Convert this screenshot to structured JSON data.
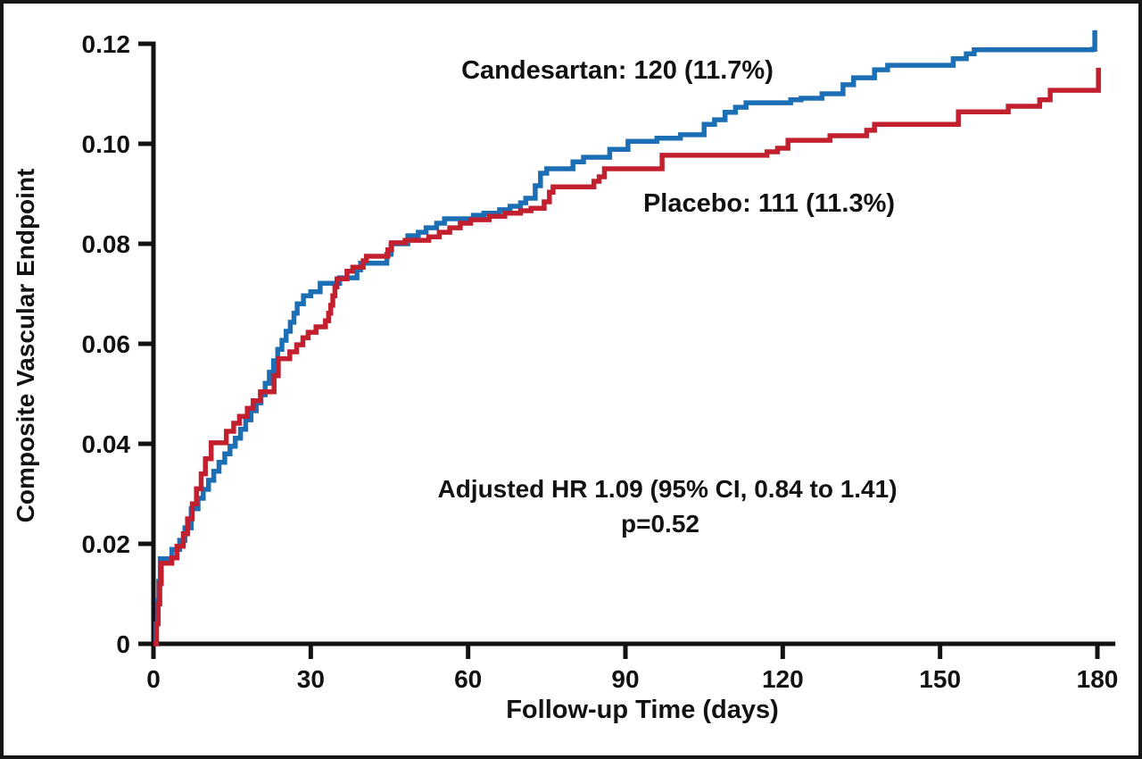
{
  "figure": {
    "colors": {
      "candesartan": "#1C6FB5",
      "placebo": "#C2202F",
      "axis": "#121212"
    },
    "annotations": {
      "candesartan_label": "Candesartan: 120 (11.7%)",
      "placebo_label": "Placebo: 111 (11.3%)",
      "hr_line1": "Adjusted HR 1.09 (95% CI, 0.84 to 1.41)",
      "hr_line2": "p=0.52"
    }
  },
  "chart_data": {
    "type": "line",
    "subtype": "kaplan-meier-cumulative-incidence-step",
    "title": "",
    "xlabel": "Follow-up Time (days)",
    "ylabel": "Composite Vascular Endpoint",
    "xlim": [
      0,
      183
    ],
    "ylim": [
      0,
      0.12
    ],
    "x_ticks": [
      0,
      30,
      60,
      90,
      120,
      150,
      180
    ],
    "y_ticks": [
      0,
      0.02,
      0.04,
      0.06,
      0.08,
      0.1,
      0.12
    ],
    "grid": false,
    "legend_position": "inline-labels",
    "annotation_text": [
      "Adjusted HR 1.09 (95% CI, 0.84 to 1.41)",
      "p=0.52"
    ],
    "series": [
      {
        "name": "Candesartan",
        "events": 120,
        "percent": "11.7%",
        "color": "#1C6FB5",
        "points": [
          [
            0,
            0
          ],
          [
            0.5,
            0.004
          ],
          [
            0.8,
            0.0086
          ],
          [
            1.0,
            0.0125
          ],
          [
            1.3,
            0.017
          ],
          [
            3.5,
            0.0189
          ],
          [
            5,
            0.0207
          ],
          [
            6,
            0.0232
          ],
          [
            7.2,
            0.027
          ],
          [
            8.5,
            0.0291
          ],
          [
            9.5,
            0.0309
          ],
          [
            10.5,
            0.0327
          ],
          [
            11.5,
            0.0345
          ],
          [
            12.5,
            0.0363
          ],
          [
            13.6,
            0.038
          ],
          [
            14.6,
            0.0395
          ],
          [
            15.6,
            0.0411
          ],
          [
            16.6,
            0.0429
          ],
          [
            17.6,
            0.0448
          ],
          [
            18.6,
            0.0466
          ],
          [
            19.6,
            0.0482
          ],
          [
            20.5,
            0.0498
          ],
          [
            21.3,
            0.0521
          ],
          [
            22.1,
            0.0543
          ],
          [
            22.9,
            0.0566
          ],
          [
            23.7,
            0.0589
          ],
          [
            24.5,
            0.0607
          ],
          [
            25.3,
            0.0625
          ],
          [
            26.1,
            0.0643
          ],
          [
            26.8,
            0.0661
          ],
          [
            27.4,
            0.068
          ],
          [
            28.6,
            0.0696
          ],
          [
            30,
            0.0704
          ],
          [
            31.8,
            0.0721
          ],
          [
            35.5,
            0.0732
          ],
          [
            38.8,
            0.0748
          ],
          [
            39.5,
            0.0761
          ],
          [
            44.5,
            0.0779
          ],
          [
            45.3,
            0.08
          ],
          [
            48.5,
            0.0816
          ],
          [
            50.5,
            0.0823
          ],
          [
            52,
            0.0832
          ],
          [
            54,
            0.0841
          ],
          [
            55.5,
            0.085
          ],
          [
            61,
            0.0857
          ],
          [
            63,
            0.0861
          ],
          [
            66,
            0.0868
          ],
          [
            68,
            0.0875
          ],
          [
            70,
            0.0882
          ],
          [
            71,
            0.0891
          ],
          [
            72.8,
            0.0916
          ],
          [
            73.8,
            0.0941
          ],
          [
            75,
            0.095
          ],
          [
            80,
            0.0964
          ],
          [
            82,
            0.0973
          ],
          [
            87,
            0.0989
          ],
          [
            90.5,
            0.1005
          ],
          [
            96,
            0.1011
          ],
          [
            100.5,
            0.1018
          ],
          [
            105,
            0.1039
          ],
          [
            107,
            0.1048
          ],
          [
            109,
            0.1063
          ],
          [
            111,
            0.1073
          ],
          [
            113,
            0.1082
          ],
          [
            121.5,
            0.1088
          ],
          [
            123.5,
            0.1091
          ],
          [
            127.5,
            0.11
          ],
          [
            131.5,
            0.1118
          ],
          [
            133.5,
            0.1132
          ],
          [
            137.5,
            0.1148
          ],
          [
            140,
            0.1157
          ],
          [
            152.5,
            0.117
          ],
          [
            155,
            0.118
          ],
          [
            156.5,
            0.1188
          ],
          [
            179,
            0.1189
          ],
          [
            179.5,
            0.1227
          ]
        ]
      },
      {
        "name": "Placebo",
        "events": 111,
        "percent": "11.3%",
        "color": "#C2202F",
        "points": [
          [
            0,
            0
          ],
          [
            0.6,
            0.004
          ],
          [
            0.9,
            0.008
          ],
          [
            1.2,
            0.012
          ],
          [
            1.5,
            0.0161
          ],
          [
            3.5,
            0.0172
          ],
          [
            4.5,
            0.0195
          ],
          [
            5.7,
            0.022
          ],
          [
            6.5,
            0.025
          ],
          [
            7.4,
            0.028
          ],
          [
            8.2,
            0.031
          ],
          [
            9.1,
            0.034
          ],
          [
            9.9,
            0.037
          ],
          [
            11,
            0.0402
          ],
          [
            13.9,
            0.0425
          ],
          [
            15.3,
            0.0441
          ],
          [
            16.4,
            0.0455
          ],
          [
            17.9,
            0.0471
          ],
          [
            19,
            0.0486
          ],
          [
            20.4,
            0.0504
          ],
          [
            23,
            0.0536
          ],
          [
            23.8,
            0.057
          ],
          [
            26,
            0.0584
          ],
          [
            27.3,
            0.0598
          ],
          [
            28.5,
            0.0612
          ],
          [
            29.5,
            0.0623
          ],
          [
            31,
            0.0634
          ],
          [
            32.8,
            0.0646
          ],
          [
            33.4,
            0.0661
          ],
          [
            33.8,
            0.0677
          ],
          [
            34.2,
            0.0696
          ],
          [
            34.6,
            0.0714
          ],
          [
            35,
            0.073
          ],
          [
            36.9,
            0.0745
          ],
          [
            38,
            0.0753
          ],
          [
            40,
            0.0766
          ],
          [
            40.6,
            0.0775
          ],
          [
            44.7,
            0.0788
          ],
          [
            45.4,
            0.0802
          ],
          [
            48,
            0.0807
          ],
          [
            52.5,
            0.0814
          ],
          [
            54.5,
            0.0823
          ],
          [
            56.5,
            0.0832
          ],
          [
            58.5,
            0.0841
          ],
          [
            60.5,
            0.0848
          ],
          [
            64,
            0.0855
          ],
          [
            67,
            0.0861
          ],
          [
            70,
            0.0866
          ],
          [
            72,
            0.0871
          ],
          [
            74.5,
            0.0884
          ],
          [
            75.5,
            0.0903
          ],
          [
            76.2,
            0.0914
          ],
          [
            84,
            0.0925
          ],
          [
            85,
            0.0934
          ],
          [
            86,
            0.095
          ],
          [
            97,
            0.0977
          ],
          [
            117,
            0.0984
          ],
          [
            119,
            0.0991
          ],
          [
            121,
            0.1007
          ],
          [
            129,
            0.1016
          ],
          [
            136,
            0.1027
          ],
          [
            137.5,
            0.1039
          ],
          [
            153.5,
            0.1064
          ],
          [
            163,
            0.1075
          ],
          [
            169,
            0.1088
          ],
          [
            171,
            0.1107
          ],
          [
            180.2,
            0.1152
          ]
        ]
      }
    ]
  }
}
